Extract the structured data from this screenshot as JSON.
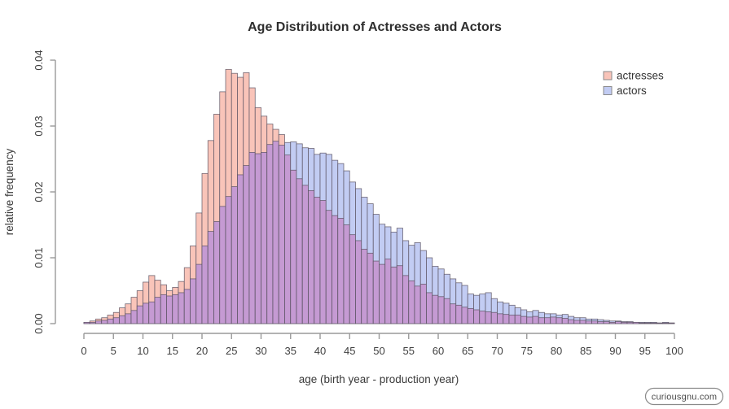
{
  "page": {
    "background": "#ffffff",
    "watermark": "curiousgnu.com"
  },
  "chart_data": {
    "type": "histogram",
    "title": "Age Distribution of Actresses and Actors",
    "xlabel": "age (birth year - production year)",
    "ylabel": "relative frequency",
    "xlim": [
      0,
      100
    ],
    "ylim": [
      0,
      0.04
    ],
    "bin_width": 1,
    "x_start": 0,
    "grid": false,
    "x_ticks": [
      0,
      5,
      10,
      15,
      20,
      25,
      30,
      35,
      40,
      45,
      50,
      55,
      60,
      65,
      70,
      75,
      80,
      85,
      90,
      95,
      100
    ],
    "y_ticks": [
      0,
      0.01,
      0.02,
      0.03,
      0.04
    ],
    "y_tick_labels": [
      "0.00",
      "0.01",
      "0.02",
      "0.03",
      "0.04"
    ],
    "colors": {
      "actresses_fill": "#F9C4B9",
      "actors_fill": "#C2CCF3",
      "overlap_fill": "#C59AD3",
      "bar_border": "#5A5262",
      "axis_line": "#9A9A9A"
    },
    "legend": {
      "position": "top-right",
      "entries": [
        {
          "label": "actresses",
          "color": "#F9C4B9",
          "border": "#8a8a8a"
        },
        {
          "label": "actors",
          "color": "#C2CCF3",
          "border": "#8a8a8a"
        }
      ]
    },
    "series": [
      {
        "name": "actresses",
        "values": [
          0.0002,
          0.0004,
          0.0007,
          0.0009,
          0.0013,
          0.0017,
          0.0024,
          0.003,
          0.004,
          0.005,
          0.0063,
          0.0073,
          0.0066,
          0.0059,
          0.005,
          0.0055,
          0.0064,
          0.0085,
          0.0118,
          0.0168,
          0.0228,
          0.0278,
          0.0318,
          0.0352,
          0.0386,
          0.038,
          0.0374,
          0.0381,
          0.0358,
          0.0328,
          0.0315,
          0.0303,
          0.0295,
          0.0287,
          0.0256,
          0.0233,
          0.022,
          0.021,
          0.0202,
          0.0192,
          0.0187,
          0.0172,
          0.0164,
          0.016,
          0.015,
          0.0135,
          0.0126,
          0.0113,
          0.0107,
          0.0095,
          0.009,
          0.0098,
          0.0086,
          0.0088,
          0.0073,
          0.0065,
          0.0057,
          0.006,
          0.0047,
          0.0043,
          0.0041,
          0.0038,
          0.003,
          0.0028,
          0.0025,
          0.0023,
          0.0021,
          0.0019,
          0.0018,
          0.0017,
          0.0015,
          0.0014,
          0.0013,
          0.0013,
          0.0011,
          0.001,
          0.0011,
          0.0009,
          0.0009,
          0.001,
          0.0009,
          0.0008,
          0.0006,
          0.0005,
          0.0005,
          0.0004,
          0.0004,
          0.0003,
          0.0003,
          0.0002,
          0.0003,
          0.0002,
          0.0002,
          0.0002,
          0.0001,
          0.0001,
          0.0001,
          0.0001,
          0.0001,
          0.0001
        ]
      },
      {
        "name": "actors",
        "values": [
          0.0002,
          0.0002,
          0.0004,
          0.0005,
          0.0007,
          0.0009,
          0.0012,
          0.0015,
          0.002,
          0.0027,
          0.0031,
          0.0033,
          0.004,
          0.0044,
          0.0042,
          0.0044,
          0.0047,
          0.0052,
          0.0068,
          0.009,
          0.0118,
          0.014,
          0.0155,
          0.0178,
          0.0193,
          0.0208,
          0.0226,
          0.024,
          0.026,
          0.0258,
          0.026,
          0.0272,
          0.0277,
          0.0271,
          0.0275,
          0.0276,
          0.0273,
          0.0267,
          0.0266,
          0.0257,
          0.0259,
          0.0257,
          0.0248,
          0.0243,
          0.0232,
          0.0215,
          0.0205,
          0.0192,
          0.0182,
          0.0166,
          0.0151,
          0.0147,
          0.0139,
          0.0145,
          0.0126,
          0.0119,
          0.0123,
          0.0111,
          0.01,
          0.0087,
          0.0083,
          0.0075,
          0.0068,
          0.0062,
          0.0058,
          0.0045,
          0.0043,
          0.0045,
          0.0047,
          0.0038,
          0.0033,
          0.0031,
          0.0028,
          0.0024,
          0.0021,
          0.0018,
          0.002,
          0.0017,
          0.0015,
          0.0015,
          0.0013,
          0.0014,
          0.0011,
          0.0009,
          0.0009,
          0.0007,
          0.0007,
          0.0006,
          0.0005,
          0.0004,
          0.0004,
          0.0003,
          0.0003,
          0.0002,
          0.0002,
          0.0002,
          0.0002,
          0.0001,
          0.0002,
          0.0001
        ]
      }
    ]
  }
}
